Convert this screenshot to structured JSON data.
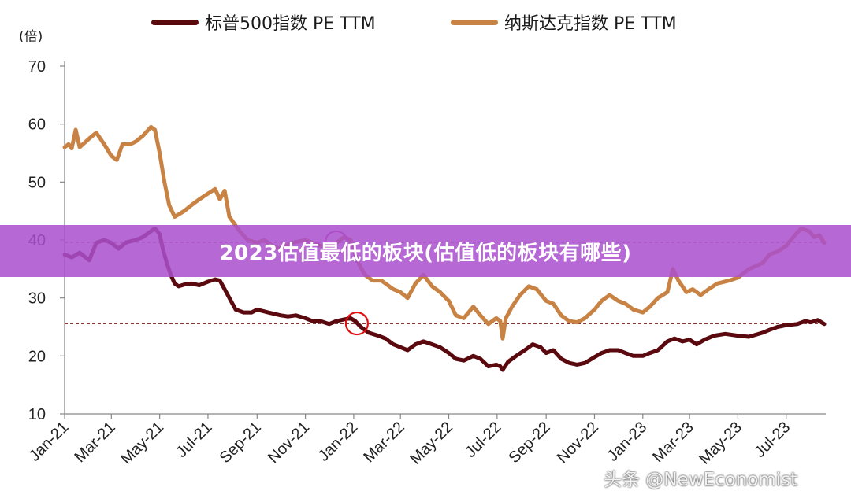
{
  "banner": {
    "title": "2023估值最低的板块(估值低的板块有哪些)"
  },
  "watermark": "头条 @NewEconomist",
  "chart_data": {
    "type": "line",
    "unit": "(倍)",
    "ylim": [
      10,
      70
    ],
    "yticks": [
      "10",
      "20",
      "30",
      "40",
      "50",
      "60",
      "70"
    ],
    "xlim": [
      "2021-01-01",
      "2023-08-20"
    ],
    "xticks": [
      {
        "label": "Jan-21",
        "date": "2021-01-01"
      },
      {
        "label": "Mar-21",
        "date": "2021-03-01"
      },
      {
        "label": "May-21",
        "date": "2021-05-01"
      },
      {
        "label": "Jul-21",
        "date": "2021-07-01"
      },
      {
        "label": "Sep-21",
        "date": "2021-09-01"
      },
      {
        "label": "Nov-21",
        "date": "2021-11-01"
      },
      {
        "label": "Jan-22",
        "date": "2022-01-01"
      },
      {
        "label": "Mar-22",
        "date": "2022-03-01"
      },
      {
        "label": "May-22",
        "date": "2022-05-01"
      },
      {
        "label": "Jul-22",
        "date": "2022-07-01"
      },
      {
        "label": "Sep-22",
        "date": "2022-09-01"
      },
      {
        "label": "Nov-22",
        "date": "2022-11-01"
      },
      {
        "label": "Jan-23",
        "date": "2023-01-01"
      },
      {
        "label": "Mar-23",
        "date": "2023-03-01"
      },
      {
        "label": "May-23",
        "date": "2023-05-01"
      },
      {
        "label": "Jul-23",
        "date": "2023-07-01"
      }
    ],
    "grid": false,
    "legend_position": "top",
    "series": [
      {
        "name": "标普500指数 PE TTM",
        "color": "#5a0a0e",
        "points": [
          [
            "2021-01-01",
            37.5
          ],
          [
            "2021-01-10",
            37.0
          ],
          [
            "2021-01-20",
            37.8
          ],
          [
            "2021-02-01",
            36.5
          ],
          [
            "2021-02-10",
            39.5
          ],
          [
            "2021-02-20",
            40.0
          ],
          [
            "2021-03-01",
            39.5
          ],
          [
            "2021-03-10",
            38.5
          ],
          [
            "2021-03-20",
            39.6
          ],
          [
            "2021-04-01",
            40.0
          ],
          [
            "2021-04-10",
            40.5
          ],
          [
            "2021-04-20",
            41.5
          ],
          [
            "2021-04-25",
            42.0
          ],
          [
            "2021-05-01",
            41.0
          ],
          [
            "2021-05-05",
            38.5
          ],
          [
            "2021-05-10",
            36.0
          ],
          [
            "2021-05-15",
            34.0
          ],
          [
            "2021-05-20",
            32.5
          ],
          [
            "2021-05-25",
            32.0
          ],
          [
            "2021-06-01",
            32.3
          ],
          [
            "2021-06-10",
            32.5
          ],
          [
            "2021-06-20",
            32.2
          ],
          [
            "2021-07-01",
            32.8
          ],
          [
            "2021-07-10",
            33.2
          ],
          [
            "2021-07-16",
            33.0
          ],
          [
            "2021-07-22",
            31.5
          ],
          [
            "2021-07-28",
            30.0
          ],
          [
            "2021-08-05",
            28.0
          ],
          [
            "2021-08-15",
            27.5
          ],
          [
            "2021-08-25",
            27.5
          ],
          [
            "2021-09-01",
            28.0
          ],
          [
            "2021-09-15",
            27.5
          ],
          [
            "2021-10-01",
            27.0
          ],
          [
            "2021-10-10",
            26.8
          ],
          [
            "2021-10-20",
            27.0
          ],
          [
            "2021-11-01",
            26.5
          ],
          [
            "2021-11-10",
            26.0
          ],
          [
            "2021-11-20",
            26.0
          ],
          [
            "2021-12-01",
            25.5
          ],
          [
            "2021-12-10",
            26.0
          ],
          [
            "2021-12-20",
            26.3
          ],
          [
            "2021-12-28",
            26.5
          ],
          [
            "2022-01-03",
            26.0
          ],
          [
            "2022-01-10",
            25.0
          ],
          [
            "2022-01-20",
            24.0
          ],
          [
            "2022-02-01",
            23.5
          ],
          [
            "2022-02-10",
            23.0
          ],
          [
            "2022-02-20",
            22.0
          ],
          [
            "2022-03-01",
            21.5
          ],
          [
            "2022-03-10",
            21.0
          ],
          [
            "2022-03-20",
            22.0
          ],
          [
            "2022-03-30",
            22.5
          ],
          [
            "2022-04-10",
            22.0
          ],
          [
            "2022-04-20",
            21.5
          ],
          [
            "2022-05-01",
            20.5
          ],
          [
            "2022-05-10",
            19.5
          ],
          [
            "2022-05-20",
            19.2
          ],
          [
            "2022-06-01",
            20.0
          ],
          [
            "2022-06-10",
            19.5
          ],
          [
            "2022-06-20",
            18.2
          ],
          [
            "2022-06-30",
            18.5
          ],
          [
            "2022-07-05",
            18.2
          ],
          [
            "2022-07-08",
            17.6
          ],
          [
            "2022-07-15",
            19.0
          ],
          [
            "2022-07-25",
            20.0
          ],
          [
            "2022-08-05",
            21.0
          ],
          [
            "2022-08-15",
            22.0
          ],
          [
            "2022-08-25",
            21.5
          ],
          [
            "2022-09-01",
            20.5
          ],
          [
            "2022-09-10",
            21.0
          ],
          [
            "2022-09-20",
            19.5
          ],
          [
            "2022-09-30",
            18.8
          ],
          [
            "2022-10-10",
            18.5
          ],
          [
            "2022-10-20",
            18.8
          ],
          [
            "2022-11-01",
            19.8
          ],
          [
            "2022-11-10",
            20.5
          ],
          [
            "2022-11-20",
            21.0
          ],
          [
            "2022-12-01",
            21.0
          ],
          [
            "2022-12-10",
            20.5
          ],
          [
            "2022-12-20",
            20.0
          ],
          [
            "2023-01-01",
            20.0
          ],
          [
            "2023-01-10",
            20.5
          ],
          [
            "2023-01-20",
            21.0
          ],
          [
            "2023-02-01",
            22.5
          ],
          [
            "2023-02-10",
            23.0
          ],
          [
            "2023-02-20",
            22.5
          ],
          [
            "2023-03-01",
            22.8
          ],
          [
            "2023-03-10",
            22.0
          ],
          [
            "2023-03-20",
            22.8
          ],
          [
            "2023-04-01",
            23.5
          ],
          [
            "2023-04-15",
            23.8
          ],
          [
            "2023-05-01",
            23.5
          ],
          [
            "2023-05-15",
            23.3
          ],
          [
            "2023-06-01",
            24.0
          ],
          [
            "2023-06-10",
            24.5
          ],
          [
            "2023-06-20",
            25.0
          ],
          [
            "2023-07-01",
            25.3
          ],
          [
            "2023-07-15",
            25.5
          ],
          [
            "2023-07-25",
            26.0
          ],
          [
            "2023-08-01",
            25.8
          ],
          [
            "2023-08-10",
            26.2
          ],
          [
            "2023-08-18",
            25.5
          ]
        ],
        "reference_line": 25.6,
        "marker": [
          "2022-01-05",
          25.6
        ]
      },
      {
        "name": "纳斯达克指数 PE TTM",
        "color": "#c88344",
        "points": [
          [
            "2021-01-01",
            56.0
          ],
          [
            "2021-01-06",
            56.5
          ],
          [
            "2021-01-10",
            55.8
          ],
          [
            "2021-01-15",
            59.0
          ],
          [
            "2021-01-20",
            56.0
          ],
          [
            "2021-02-01",
            57.5
          ],
          [
            "2021-02-10",
            58.5
          ],
          [
            "2021-02-20",
            56.5
          ],
          [
            "2021-03-01",
            54.5
          ],
          [
            "2021-03-08",
            53.8
          ],
          [
            "2021-03-15",
            56.5
          ],
          [
            "2021-03-25",
            56.5
          ],
          [
            "2021-04-01",
            57.0
          ],
          [
            "2021-04-10",
            58.0
          ],
          [
            "2021-04-20",
            59.5
          ],
          [
            "2021-04-25",
            59.0
          ],
          [
            "2021-05-01",
            55.0
          ],
          [
            "2021-05-07",
            50.0
          ],
          [
            "2021-05-13",
            46.0
          ],
          [
            "2021-05-20",
            44.0
          ],
          [
            "2021-06-01",
            45.0
          ],
          [
            "2021-06-10",
            46.0
          ],
          [
            "2021-06-20",
            47.0
          ],
          [
            "2021-07-01",
            48.0
          ],
          [
            "2021-07-10",
            48.8
          ],
          [
            "2021-07-16",
            47.0
          ],
          [
            "2021-07-22",
            48.5
          ],
          [
            "2021-07-28",
            44.0
          ],
          [
            "2021-08-10",
            41.5
          ],
          [
            "2021-08-20",
            40.0
          ],
          [
            "2021-09-01",
            39.5
          ],
          [
            "2021-09-10",
            40.0
          ],
          [
            "2021-09-20",
            39.0
          ],
          [
            "2021-10-01",
            38.5
          ],
          [
            "2021-10-15",
            39.5
          ],
          [
            "2021-11-01",
            40.0
          ],
          [
            "2021-11-10",
            39.5
          ],
          [
            "2021-11-20",
            39.0
          ],
          [
            "2021-12-01",
            39.0
          ],
          [
            "2021-12-10",
            39.5
          ],
          [
            "2021-12-20",
            40.5
          ],
          [
            "2021-12-28",
            40.0
          ],
          [
            "2022-01-05",
            36.5
          ],
          [
            "2022-01-15",
            34.0
          ],
          [
            "2022-01-25",
            33.0
          ],
          [
            "2022-02-05",
            33.0
          ],
          [
            "2022-02-20",
            31.5
          ],
          [
            "2022-03-01",
            31.0
          ],
          [
            "2022-03-10",
            30.0
          ],
          [
            "2022-03-20",
            32.5
          ],
          [
            "2022-03-30",
            34.0
          ],
          [
            "2022-04-10",
            32.0
          ],
          [
            "2022-04-20",
            31.0
          ],
          [
            "2022-05-01",
            29.5
          ],
          [
            "2022-05-10",
            27.0
          ],
          [
            "2022-05-20",
            26.5
          ],
          [
            "2022-06-01",
            28.5
          ],
          [
            "2022-06-10",
            27.0
          ],
          [
            "2022-06-20",
            25.5
          ],
          [
            "2022-06-30",
            26.5
          ],
          [
            "2022-07-05",
            26.0
          ],
          [
            "2022-07-08",
            23.0
          ],
          [
            "2022-07-12",
            26.5
          ],
          [
            "2022-07-20",
            28.5
          ],
          [
            "2022-07-30",
            30.5
          ],
          [
            "2022-08-10",
            32.0
          ],
          [
            "2022-08-20",
            31.5
          ],
          [
            "2022-09-01",
            29.5
          ],
          [
            "2022-09-10",
            29.0
          ],
          [
            "2022-09-20",
            27.0
          ],
          [
            "2022-09-30",
            26.0
          ],
          [
            "2022-10-10",
            25.8
          ],
          [
            "2022-10-20",
            26.5
          ],
          [
            "2022-11-01",
            28.0
          ],
          [
            "2022-11-10",
            29.5
          ],
          [
            "2022-11-20",
            30.5
          ],
          [
            "2022-12-01",
            29.5
          ],
          [
            "2022-12-10",
            29.0
          ],
          [
            "2022-12-20",
            28.0
          ],
          [
            "2023-01-01",
            27.5
          ],
          [
            "2023-01-10",
            28.5
          ],
          [
            "2023-01-20",
            30.0
          ],
          [
            "2023-02-01",
            31.0
          ],
          [
            "2023-02-08",
            35.0
          ],
          [
            "2023-02-15",
            33.0
          ],
          [
            "2023-02-25",
            31.0
          ],
          [
            "2023-03-05",
            31.5
          ],
          [
            "2023-03-15",
            30.5
          ],
          [
            "2023-03-25",
            31.5
          ],
          [
            "2023-04-05",
            32.5
          ],
          [
            "2023-04-20",
            33.0
          ],
          [
            "2023-05-01",
            33.5
          ],
          [
            "2023-05-15",
            35.0
          ],
          [
            "2023-06-01",
            36.0
          ],
          [
            "2023-06-10",
            37.5
          ],
          [
            "2023-06-20",
            38.0
          ],
          [
            "2023-07-01",
            39.0
          ],
          [
            "2023-07-10",
            40.5
          ],
          [
            "2023-07-20",
            42.0
          ],
          [
            "2023-07-30",
            41.5
          ],
          [
            "2023-08-05",
            40.5
          ],
          [
            "2023-08-12",
            40.8
          ],
          [
            "2023-08-18",
            39.5
          ]
        ],
        "reference_line": 39.6,
        "marker": [
          "2021-12-10",
          39.6
        ]
      }
    ]
  }
}
